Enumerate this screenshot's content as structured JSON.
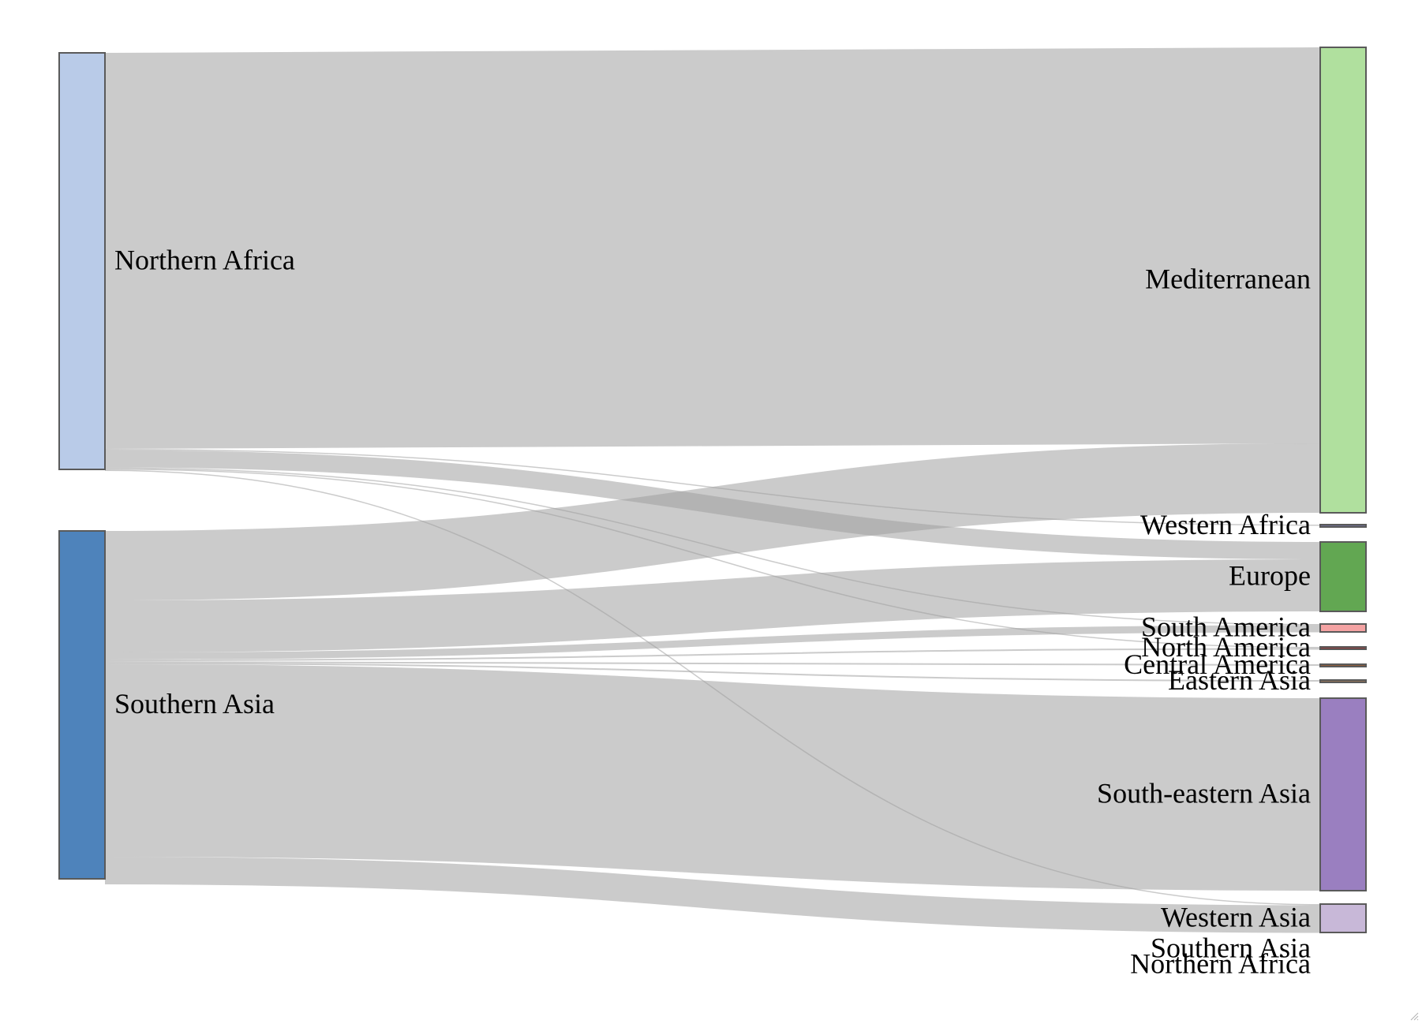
{
  "chart_data": {
    "type": "sankey",
    "nodes": [
      {
        "id": "src-northern-africa",
        "name": "Northern Africa",
        "column": 0,
        "value": 528,
        "color": "#b9cbe8"
      },
      {
        "id": "src-southern-asia",
        "name": "Southern Asia",
        "column": 0,
        "value": 441,
        "color": "#4e83bb"
      },
      {
        "id": "dst-mediterranean",
        "name": "Mediterranean",
        "column": 1,
        "value": 590,
        "color": "#b0e09e"
      },
      {
        "id": "dst-western-africa",
        "name": "Western Africa",
        "column": 1,
        "value": 1,
        "color": "#6b6b8c"
      },
      {
        "id": "dst-europe",
        "name": "Europe",
        "column": 1,
        "value": 88,
        "color": "#62a752"
      },
      {
        "id": "dst-south-america",
        "name": "South America",
        "column": 1,
        "value": 10,
        "color": "#f4a3a3"
      },
      {
        "id": "dst-north-america",
        "name": "North America",
        "column": 1,
        "value": 3,
        "color": "#8f3a3a"
      },
      {
        "id": "dst-central-america",
        "name": "Central America",
        "column": 1,
        "value": 2,
        "color": "#8c5a3a"
      },
      {
        "id": "dst-eastern-asia",
        "name": "Eastern Asia",
        "column": 1,
        "value": 2,
        "color": "#8c6f55"
      },
      {
        "id": "dst-south-eastern-asia",
        "name": "South-eastern Asia",
        "column": 1,
        "value": 244,
        "color": "#9a7fc0"
      },
      {
        "id": "dst-western-asia",
        "name": "Western Asia",
        "column": 1,
        "value": 36,
        "color": "#c8b8d8"
      },
      {
        "id": "dst-southern-asia",
        "name": "Southern Asia",
        "column": 1,
        "value": 0,
        "color": "#4e83bb"
      },
      {
        "id": "dst-northern-africa",
        "name": "Northern Africa",
        "column": 1,
        "value": 0,
        "color": "#b9cbe8"
      }
    ],
    "links": [
      {
        "source": "src-northern-africa",
        "target": "dst-mediterranean",
        "value": 502
      },
      {
        "source": "src-northern-africa",
        "target": "dst-western-africa",
        "value": 1
      },
      {
        "source": "src-northern-africa",
        "target": "dst-europe",
        "value": 22
      },
      {
        "source": "src-northern-africa",
        "target": "dst-south-america",
        "value": 1
      },
      {
        "source": "src-northern-africa",
        "target": "dst-north-america",
        "value": 1
      },
      {
        "source": "src-northern-africa",
        "target": "dst-western-asia",
        "value": 1
      },
      {
        "source": "src-southern-asia",
        "target": "dst-mediterranean",
        "value": 88
      },
      {
        "source": "src-southern-asia",
        "target": "dst-europe",
        "value": 66
      },
      {
        "source": "src-southern-asia",
        "target": "dst-south-america",
        "value": 9
      },
      {
        "source": "src-southern-asia",
        "target": "dst-north-america",
        "value": 2
      },
      {
        "source": "src-southern-asia",
        "target": "dst-central-america",
        "value": 2
      },
      {
        "source": "src-southern-asia",
        "target": "dst-eastern-asia",
        "value": 2
      },
      {
        "source": "src-southern-asia",
        "target": "dst-south-eastern-asia",
        "value": 244
      },
      {
        "source": "src-southern-asia",
        "target": "dst-western-asia",
        "value": 35
      }
    ]
  }
}
